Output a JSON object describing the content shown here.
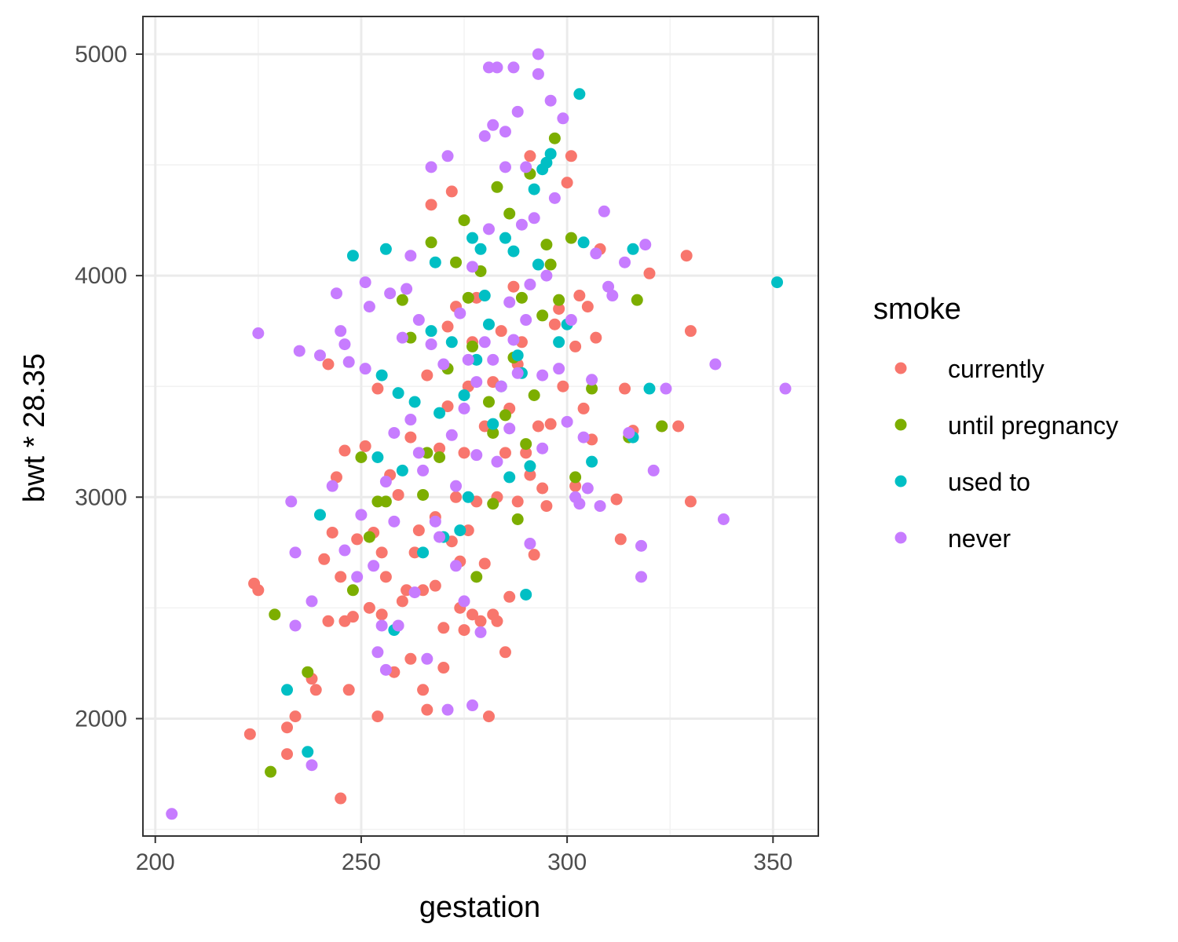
{
  "chart_data": {
    "type": "scatter",
    "xlabel": "gestation",
    "ylabel": "bwt * 28.35",
    "xlim": [
      197,
      361
    ],
    "ylim": [
      1470,
      5170
    ],
    "x_ticks": [
      200,
      250,
      300,
      350
    ],
    "y_ticks": [
      2000,
      3000,
      4000,
      5000
    ],
    "grid": true,
    "legend": {
      "title": "smoke",
      "placement": "right"
    },
    "series": [
      {
        "name": "currently",
        "color": "#F8766D",
        "points": [
          [
            223,
            1930
          ],
          [
            224,
            2610
          ],
          [
            225,
            2580
          ],
          [
            232,
            1960
          ],
          [
            232,
            1840
          ],
          [
            234,
            2010
          ],
          [
            238,
            2180
          ],
          [
            239,
            2130
          ],
          [
            241,
            2720
          ],
          [
            242,
            2440
          ],
          [
            242,
            3600
          ],
          [
            243,
            2840
          ],
          [
            244,
            3090
          ],
          [
            245,
            1640
          ],
          [
            245,
            2640
          ],
          [
            246,
            2440
          ],
          [
            246,
            3210
          ],
          [
            247,
            2130
          ],
          [
            248,
            2460
          ],
          [
            249,
            2810
          ],
          [
            251,
            3230
          ],
          [
            252,
            2500
          ],
          [
            253,
            2840
          ],
          [
            254,
            2010
          ],
          [
            254,
            3490
          ],
          [
            255,
            2750
          ],
          [
            255,
            2470
          ],
          [
            256,
            2640
          ],
          [
            257,
            3100
          ],
          [
            258,
            2210
          ],
          [
            259,
            3010
          ],
          [
            260,
            2530
          ],
          [
            261,
            2580
          ],
          [
            262,
            2270
          ],
          [
            262,
            3270
          ],
          [
            263,
            2750
          ],
          [
            264,
            2850
          ],
          [
            265,
            2580
          ],
          [
            265,
            2130
          ],
          [
            266,
            2040
          ],
          [
            266,
            3550
          ],
          [
            267,
            4320
          ],
          [
            268,
            2910
          ],
          [
            268,
            2600
          ],
          [
            269,
            3220
          ],
          [
            270,
            2410
          ],
          [
            270,
            2230
          ],
          [
            271,
            3770
          ],
          [
            271,
            3410
          ],
          [
            272,
            4380
          ],
          [
            272,
            2800
          ],
          [
            273,
            3860
          ],
          [
            273,
            3000
          ],
          [
            274,
            2500
          ],
          [
            274,
            2710
          ],
          [
            275,
            3200
          ],
          [
            275,
            2400
          ],
          [
            276,
            3500
          ],
          [
            276,
            2850
          ],
          [
            277,
            2470
          ],
          [
            277,
            3700
          ],
          [
            278,
            3900
          ],
          [
            278,
            2980
          ],
          [
            279,
            2440
          ],
          [
            280,
            3320
          ],
          [
            280,
            2700
          ],
          [
            281,
            2010
          ],
          [
            282,
            3520
          ],
          [
            282,
            2470
          ],
          [
            283,
            3000
          ],
          [
            283,
            2440
          ],
          [
            284,
            3750
          ],
          [
            285,
            3200
          ],
          [
            285,
            2300
          ],
          [
            286,
            2550
          ],
          [
            286,
            3400
          ],
          [
            287,
            3950
          ],
          [
            288,
            2980
          ],
          [
            288,
            3600
          ],
          [
            289,
            3700
          ],
          [
            290,
            3200
          ],
          [
            291,
            3100
          ],
          [
            291,
            4540
          ],
          [
            292,
            2740
          ],
          [
            293,
            3320
          ],
          [
            294,
            3040
          ],
          [
            295,
            2960
          ],
          [
            296,
            3330
          ],
          [
            297,
            3780
          ],
          [
            298,
            3850
          ],
          [
            299,
            3500
          ],
          [
            300,
            4420
          ],
          [
            301,
            4540
          ],
          [
            302,
            3680
          ],
          [
            302,
            3050
          ],
          [
            303,
            3910
          ],
          [
            304,
            3400
          ],
          [
            305,
            3860
          ],
          [
            306,
            3260
          ],
          [
            307,
            3720
          ],
          [
            308,
            4120
          ],
          [
            312,
            2990
          ],
          [
            313,
            2810
          ],
          [
            314,
            3490
          ],
          [
            316,
            3300
          ],
          [
            320,
            4010
          ],
          [
            323,
            3320
          ],
          [
            327,
            3320
          ],
          [
            329,
            4090
          ],
          [
            330,
            2980
          ],
          [
            330,
            3750
          ]
        ]
      },
      {
        "name": "until pregnancy",
        "color": "#7CAE00",
        "points": [
          [
            228,
            1760
          ],
          [
            229,
            2470
          ],
          [
            237,
            2210
          ],
          [
            248,
            2580
          ],
          [
            250,
            3180
          ],
          [
            252,
            2820
          ],
          [
            254,
            2980
          ],
          [
            256,
            2980
          ],
          [
            260,
            3890
          ],
          [
            262,
            3720
          ],
          [
            265,
            3010
          ],
          [
            266,
            3200
          ],
          [
            267,
            4150
          ],
          [
            269,
            3180
          ],
          [
            271,
            3580
          ],
          [
            273,
            4060
          ],
          [
            275,
            4250
          ],
          [
            276,
            3900
          ],
          [
            277,
            3680
          ],
          [
            278,
            2640
          ],
          [
            279,
            4020
          ],
          [
            281,
            3430
          ],
          [
            282,
            3290
          ],
          [
            282,
            2970
          ],
          [
            283,
            4400
          ],
          [
            285,
            3370
          ],
          [
            286,
            4280
          ],
          [
            287,
            3630
          ],
          [
            288,
            2900
          ],
          [
            289,
            3900
          ],
          [
            290,
            3240
          ],
          [
            291,
            4460
          ],
          [
            292,
            3460
          ],
          [
            294,
            3820
          ],
          [
            295,
            4140
          ],
          [
            296,
            4050
          ],
          [
            297,
            4620
          ],
          [
            298,
            3890
          ],
          [
            301,
            4170
          ],
          [
            302,
            3090
          ],
          [
            306,
            3490
          ],
          [
            315,
            3270
          ],
          [
            317,
            3890
          ],
          [
            323,
            3320
          ]
        ]
      },
      {
        "name": "used to",
        "color": "#00BFC4",
        "points": [
          [
            232,
            2130
          ],
          [
            237,
            1850
          ],
          [
            240,
            2920
          ],
          [
            248,
            4090
          ],
          [
            254,
            3180
          ],
          [
            255,
            3550
          ],
          [
            256,
            4120
          ],
          [
            258,
            2400
          ],
          [
            259,
            3470
          ],
          [
            260,
            3120
          ],
          [
            263,
            3430
          ],
          [
            265,
            2750
          ],
          [
            267,
            3750
          ],
          [
            268,
            4060
          ],
          [
            269,
            3380
          ],
          [
            270,
            2820
          ],
          [
            272,
            3700
          ],
          [
            274,
            2850
          ],
          [
            275,
            3460
          ],
          [
            276,
            3000
          ],
          [
            277,
            4170
          ],
          [
            278,
            3620
          ],
          [
            279,
            4120
          ],
          [
            280,
            3910
          ],
          [
            281,
            3780
          ],
          [
            282,
            3330
          ],
          [
            284,
            3500
          ],
          [
            285,
            4170
          ],
          [
            286,
            3090
          ],
          [
            287,
            4110
          ],
          [
            288,
            3640
          ],
          [
            289,
            3560
          ],
          [
            290,
            2560
          ],
          [
            291,
            3140
          ],
          [
            292,
            4390
          ],
          [
            293,
            4050
          ],
          [
            294,
            4480
          ],
          [
            295,
            4510
          ],
          [
            296,
            4550
          ],
          [
            298,
            3700
          ],
          [
            300,
            3780
          ],
          [
            303,
            4820
          ],
          [
            304,
            4150
          ],
          [
            306,
            3160
          ],
          [
            316,
            4120
          ],
          [
            316,
            3270
          ],
          [
            320,
            3490
          ],
          [
            351,
            3970
          ]
        ]
      },
      {
        "name": "never",
        "color": "#C77CFF",
        "points": [
          [
            204,
            1570
          ],
          [
            225,
            3740
          ],
          [
            233,
            2980
          ],
          [
            234,
            2420
          ],
          [
            234,
            2750
          ],
          [
            235,
            3660
          ],
          [
            238,
            2530
          ],
          [
            238,
            1790
          ],
          [
            240,
            3640
          ],
          [
            243,
            3050
          ],
          [
            244,
            3920
          ],
          [
            245,
            3750
          ],
          [
            246,
            2760
          ],
          [
            246,
            3690
          ],
          [
            247,
            3610
          ],
          [
            249,
            2640
          ],
          [
            250,
            2920
          ],
          [
            251,
            3580
          ],
          [
            251,
            3970
          ],
          [
            252,
            3860
          ],
          [
            253,
            2690
          ],
          [
            254,
            2300
          ],
          [
            255,
            2420
          ],
          [
            256,
            2220
          ],
          [
            256,
            3070
          ],
          [
            257,
            3920
          ],
          [
            258,
            2890
          ],
          [
            258,
            3290
          ],
          [
            259,
            2420
          ],
          [
            260,
            3720
          ],
          [
            261,
            3940
          ],
          [
            262,
            3350
          ],
          [
            262,
            4090
          ],
          [
            263,
            2570
          ],
          [
            264,
            3800
          ],
          [
            264,
            3200
          ],
          [
            265,
            3120
          ],
          [
            266,
            2270
          ],
          [
            267,
            3690
          ],
          [
            267,
            4490
          ],
          [
            268,
            2890
          ],
          [
            269,
            2820
          ],
          [
            270,
            3600
          ],
          [
            271,
            4540
          ],
          [
            271,
            2040
          ],
          [
            272,
            3280
          ],
          [
            273,
            3050
          ],
          [
            273,
            2690
          ],
          [
            274,
            3830
          ],
          [
            275,
            2530
          ],
          [
            275,
            3400
          ],
          [
            276,
            3620
          ],
          [
            277,
            4040
          ],
          [
            277,
            2060
          ],
          [
            278,
            3520
          ],
          [
            278,
            3190
          ],
          [
            279,
            2390
          ],
          [
            280,
            3700
          ],
          [
            280,
            4630
          ],
          [
            281,
            4940
          ],
          [
            281,
            4210
          ],
          [
            282,
            3620
          ],
          [
            282,
            4680
          ],
          [
            283,
            4940
          ],
          [
            283,
            3160
          ],
          [
            284,
            3500
          ],
          [
            285,
            4490
          ],
          [
            285,
            4650
          ],
          [
            286,
            3880
          ],
          [
            286,
            3310
          ],
          [
            287,
            3710
          ],
          [
            287,
            4940
          ],
          [
            288,
            4740
          ],
          [
            288,
            3560
          ],
          [
            289,
            4230
          ],
          [
            290,
            3800
          ],
          [
            290,
            4490
          ],
          [
            291,
            2790
          ],
          [
            291,
            3960
          ],
          [
            292,
            4260
          ],
          [
            293,
            5000
          ],
          [
            293,
            4910
          ],
          [
            294,
            3550
          ],
          [
            294,
            3220
          ],
          [
            295,
            4000
          ],
          [
            296,
            4790
          ],
          [
            297,
            4350
          ],
          [
            298,
            3580
          ],
          [
            299,
            4710
          ],
          [
            300,
            3340
          ],
          [
            301,
            3800
          ],
          [
            302,
            3000
          ],
          [
            303,
            2970
          ],
          [
            304,
            3270
          ],
          [
            305,
            3040
          ],
          [
            306,
            3530
          ],
          [
            307,
            4100
          ],
          [
            308,
            2960
          ],
          [
            309,
            4290
          ],
          [
            310,
            3950
          ],
          [
            311,
            3910
          ],
          [
            314,
            4060
          ],
          [
            315,
            3290
          ],
          [
            318,
            2780
          ],
          [
            318,
            2640
          ],
          [
            319,
            4140
          ],
          [
            321,
            3120
          ],
          [
            324,
            3490
          ],
          [
            336,
            3600
          ],
          [
            338,
            2900
          ],
          [
            353,
            3490
          ]
        ]
      }
    ]
  }
}
